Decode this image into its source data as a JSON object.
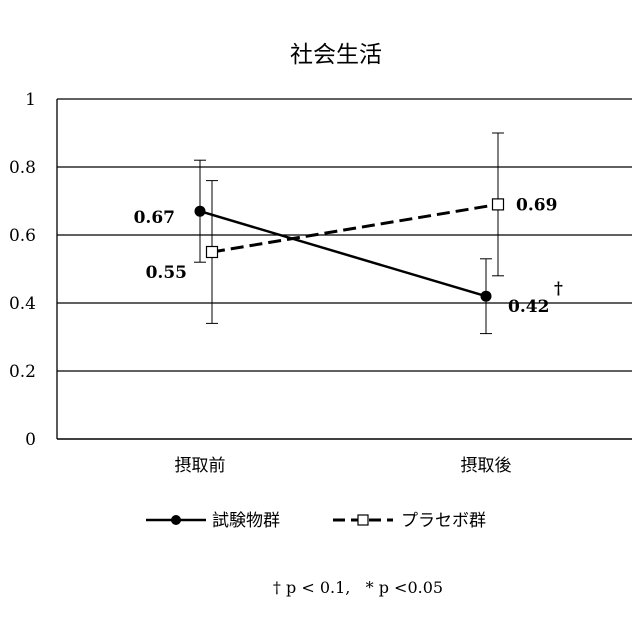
{
  "chart_data": {
    "type": "line",
    "title": "社会生活",
    "xlabel": "",
    "ylabel": "",
    "categories": [
      "摂取前",
      "摂取後"
    ],
    "ylim": [
      0,
      1
    ],
    "yticks": [
      "0",
      "0.2",
      "0.4",
      "0.6",
      "0.8",
      "1"
    ],
    "grid": true,
    "legend_position": "bottom",
    "series": [
      {
        "name": "試験物群",
        "values": [
          0.67,
          0.42
        ],
        "labels": [
          "0.67",
          "0.42"
        ],
        "error_upper": [
          0.82,
          0.53
        ],
        "error_lower": [
          0.52,
          0.31
        ],
        "line_style": "solid",
        "marker": "filled-circle"
      },
      {
        "name": "プラセボ群",
        "values": [
          0.55,
          0.69
        ],
        "labels": [
          "0.55",
          "0.69"
        ],
        "error_upper": [
          0.76,
          0.9
        ],
        "error_lower": [
          0.34,
          0.48
        ],
        "line_style": "dashed",
        "marker": "open-square"
      }
    ],
    "annotations": [
      {
        "text": "†",
        "series": 0,
        "point": 1
      }
    ],
    "footnote": "† p < 0.1,   * p <0.05"
  }
}
